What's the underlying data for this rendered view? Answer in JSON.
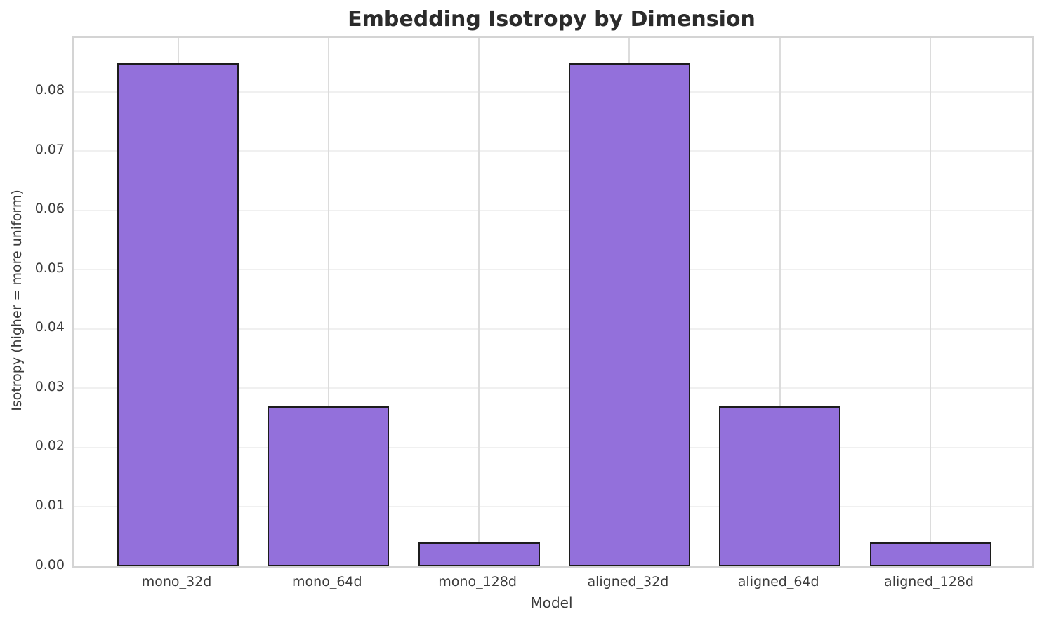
{
  "chart_data": {
    "type": "bar",
    "title": "Embedding Isotropy by Dimension",
    "xlabel": "Model",
    "ylabel": "Isotropy (higher = more uniform)",
    "categories": [
      "mono_32d",
      "mono_64d",
      "mono_128d",
      "aligned_32d",
      "aligned_64d",
      "aligned_128d"
    ],
    "values": [
      0.0848,
      0.027,
      0.004,
      0.0848,
      0.027,
      0.004
    ],
    "ylim": [
      0,
      0.0891
    ],
    "yticks": [
      0,
      0.01,
      0.02,
      0.03,
      0.04,
      0.05,
      0.06,
      0.07,
      0.08
    ],
    "ytick_labels": [
      "0.00",
      "0.01",
      "0.02",
      "0.03",
      "0.04",
      "0.05",
      "0.06",
      "0.07",
      "0.08"
    ],
    "grid": true,
    "legend": false,
    "bar_color": "#9370DB",
    "bar_edge_color": "#1c1c1c"
  },
  "colors": {
    "background": "#ffffff",
    "horizontal_grid": "#f0f0f0",
    "vertical_grid": "#dcdcdc",
    "spine": "#d4d4d4",
    "tick_text": "#3a3a3a",
    "title_text": "#2b2b2b"
  }
}
